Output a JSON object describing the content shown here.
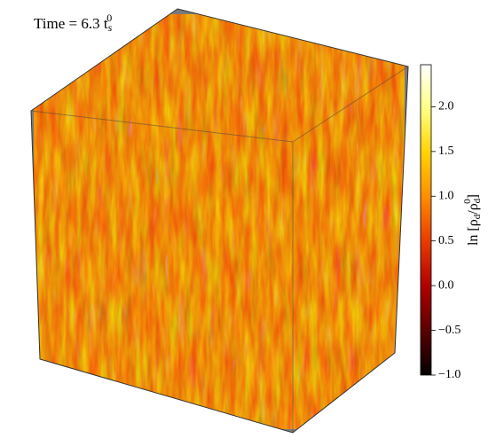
{
  "chart_data": {
    "type": "volume",
    "title": "Time = 6.3 t",
    "title_sub": "s",
    "title_sup": "0",
    "colorbar_label_parts": [
      "ln [ρ",
      "d",
      "/ρ",
      "d",
      "0",
      "]"
    ],
    "colormap": [
      "#000000",
      "#5a0000",
      "#b00000",
      "#e83a00",
      "#ff8c00",
      "#ffd200",
      "#ffff80",
      "#ffffff"
    ],
    "clim": [
      -1,
      2.47
    ],
    "cticks": [
      {
        "value": -1,
        "label": "−1.0"
      },
      {
        "value": -0.5,
        "label": "−0.5"
      },
      {
        "value": 0,
        "label": "0.0"
      },
      0.5,
      {
        "value": 1,
        "label": "1.0"
      },
      1.5,
      {
        "value": 2,
        "label": "2.0"
      }
    ]
  }
}
